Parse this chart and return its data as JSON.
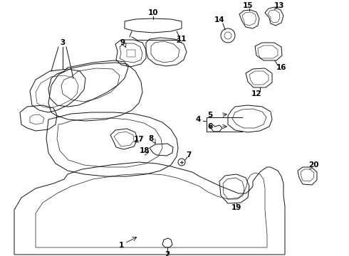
{
  "bg_color": "#ffffff",
  "line_color": "#111111",
  "label_color": "#000000",
  "fig_w": 4.9,
  "fig_h": 3.6,
  "dpi": 100
}
